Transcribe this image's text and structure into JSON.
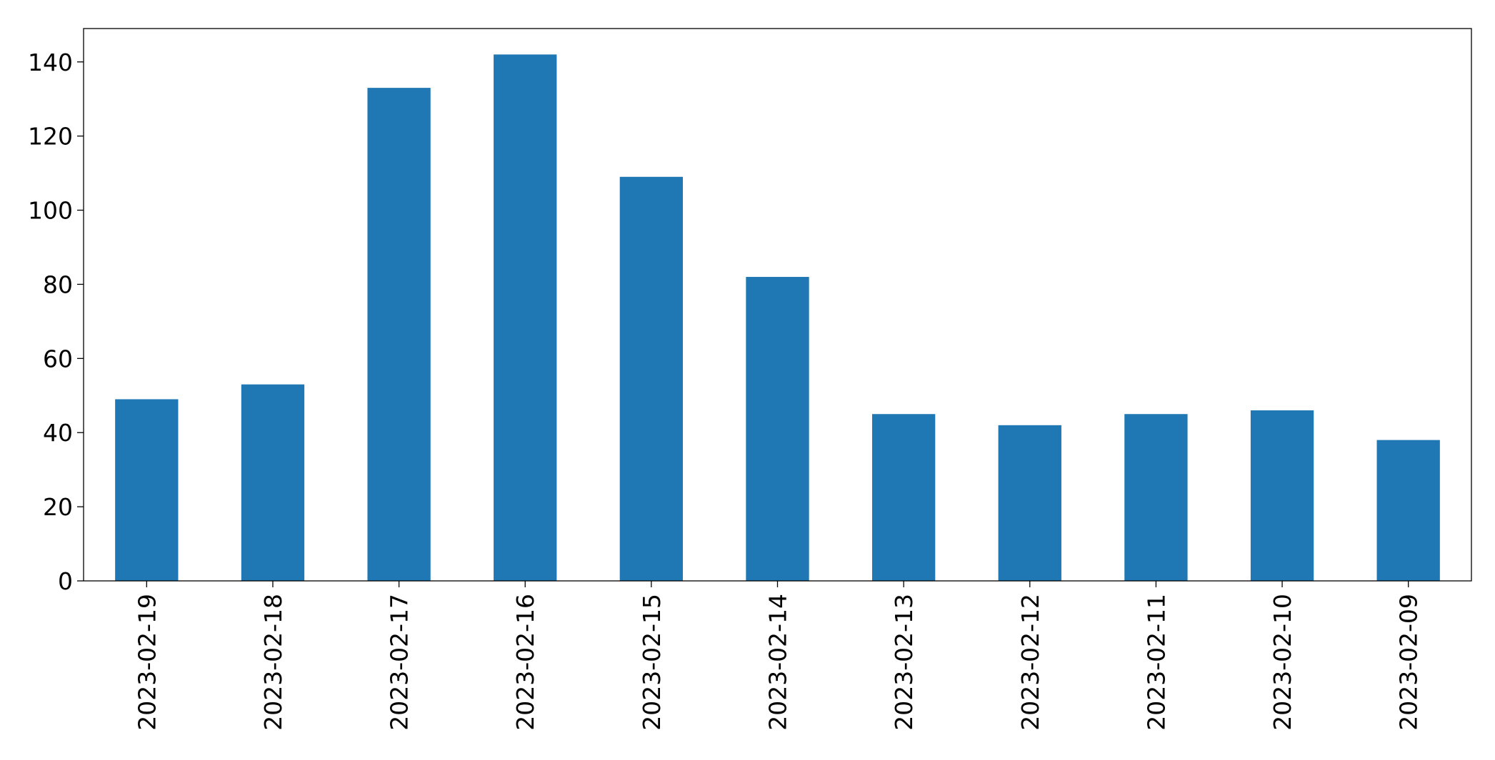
{
  "chart_data": {
    "type": "bar",
    "title": "",
    "xlabel": "",
    "ylabel": "",
    "categories": [
      "2023-02-19",
      "2023-02-18",
      "2023-02-17",
      "2023-02-16",
      "2023-02-15",
      "2023-02-14",
      "2023-02-13",
      "2023-02-12",
      "2023-02-11",
      "2023-02-10",
      "2023-02-09"
    ],
    "series": [
      {
        "values": [
          49,
          53,
          133,
          142,
          109,
          82,
          45,
          42,
          45,
          46,
          38
        ],
        "color": "#1f77b4"
      }
    ],
    "ylim": [
      0,
      149
    ],
    "yticks": [
      0,
      20,
      40,
      60,
      80,
      100,
      120,
      140
    ],
    "grid": false,
    "legend": "none"
  }
}
